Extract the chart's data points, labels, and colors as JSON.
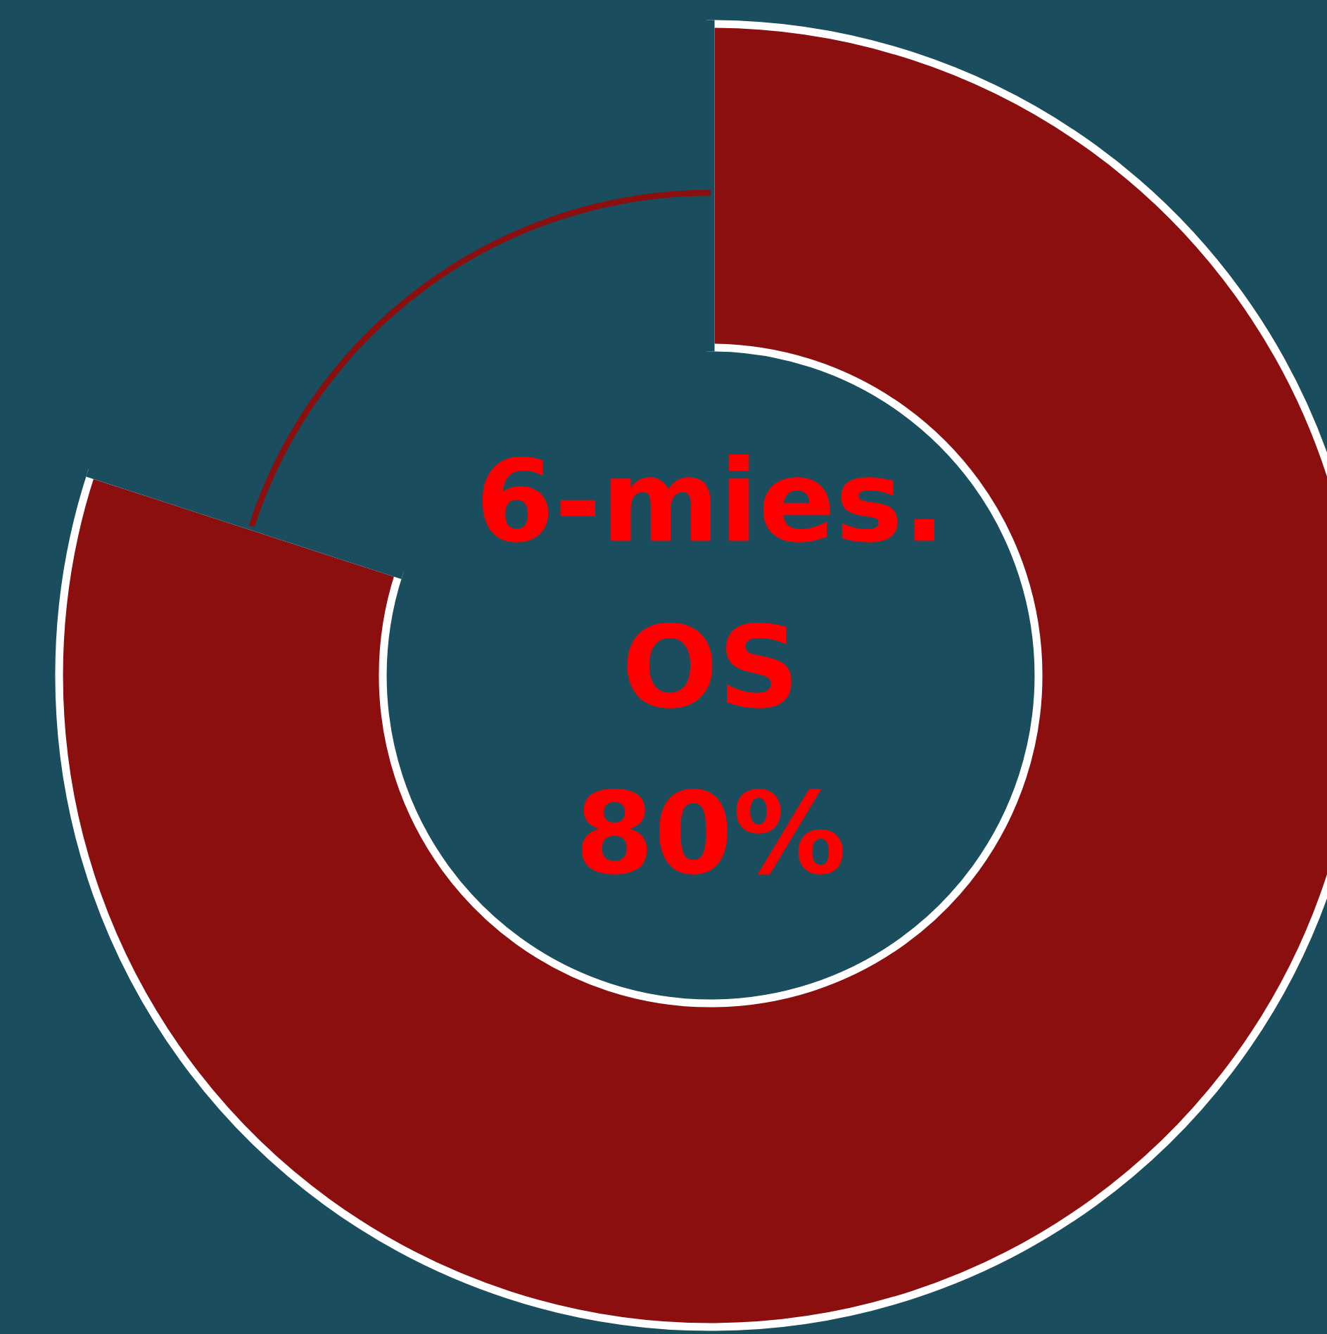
{
  "chart_data": {
    "type": "donut",
    "categories": [
      null,
      null
    ],
    "values": [
      80,
      20
    ],
    "colors": [
      "#8b0f0f",
      "#1a4d5e"
    ],
    "value_labels": [
      "80%",
      null
    ],
    "annotations": [
      "6-mies.",
      "OS"
    ]
  }
}
